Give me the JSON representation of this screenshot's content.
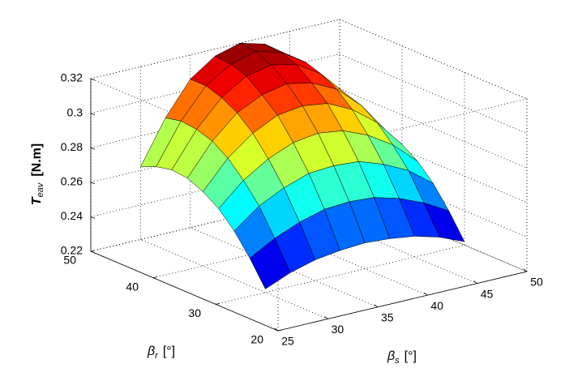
{
  "chart_data": {
    "type": "surface",
    "xlabel": {
      "symbol": "β",
      "subscript": "s",
      "unit": "[°]"
    },
    "ylabel": {
      "symbol": "β",
      "subscript": "r",
      "unit": "[°]"
    },
    "zlabel": {
      "symbol": "T",
      "subscript": "eav",
      "unit": "[N.m]"
    },
    "x": [
      30,
      32.5,
      35,
      37.5,
      40,
      42.5,
      45,
      47.5,
      50
    ],
    "y": [
      30,
      32.5,
      35,
      37.5,
      40,
      42.5,
      45,
      47.5,
      50
    ],
    "z": [
      [
        0.222,
        0.228,
        0.232,
        0.234,
        0.235,
        0.234,
        0.232,
        0.228,
        0.222
      ],
      [
        0.236,
        0.244,
        0.25,
        0.254,
        0.255,
        0.254,
        0.25,
        0.244,
        0.236
      ],
      [
        0.248,
        0.259,
        0.266,
        0.271,
        0.272,
        0.271,
        0.266,
        0.259,
        0.248
      ],
      [
        0.257,
        0.27,
        0.279,
        0.285,
        0.287,
        0.285,
        0.279,
        0.27,
        0.257
      ],
      [
        0.263,
        0.279,
        0.29,
        0.297,
        0.299,
        0.297,
        0.29,
        0.279,
        0.263
      ],
      [
        0.267,
        0.285,
        0.298,
        0.305,
        0.308,
        0.305,
        0.298,
        0.285,
        0.267
      ],
      [
        0.268,
        0.288,
        0.303,
        0.312,
        0.315,
        0.312,
        0.303,
        0.288,
        0.268
      ],
      [
        0.266,
        0.289,
        0.306,
        0.315,
        0.319,
        0.315,
        0.306,
        0.289,
        0.266
      ],
      [
        0.262,
        0.287,
        0.306,
        0.316,
        0.32,
        0.316,
        0.306,
        0.287,
        0.262
      ]
    ],
    "xlim": [
      25,
      50
    ],
    "ylim": [
      20,
      50
    ],
    "zlim": [
      0.22,
      0.32
    ],
    "xticks": [
      25,
      30,
      35,
      40,
      45,
      50
    ],
    "yticks": [
      20,
      30,
      40,
      50
    ],
    "zticks": [
      0.22,
      0.24,
      0.26,
      0.28,
      0.3,
      0.32
    ],
    "grid": true,
    "colormap": "jet"
  }
}
